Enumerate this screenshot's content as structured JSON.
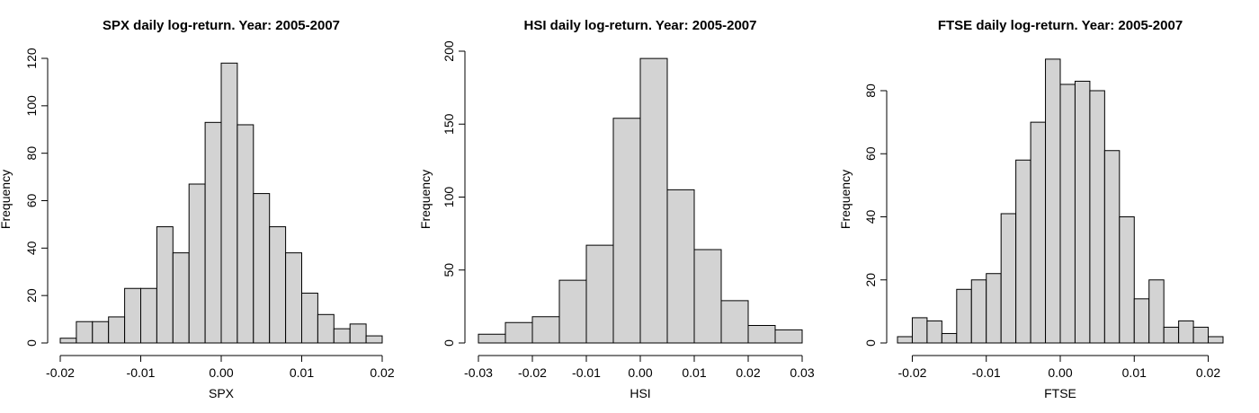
{
  "chart_data": [
    {
      "type": "bar",
      "title": "SPX daily log-return. Year: 2005-2007",
      "xlabel": "SPX",
      "ylabel": "Frequency",
      "bin_edges": [
        -0.02,
        -0.018,
        -0.016,
        -0.014,
        -0.012,
        -0.01,
        -0.008,
        -0.006,
        -0.004,
        -0.002,
        0.0,
        0.002,
        0.004,
        0.006,
        0.008,
        0.01,
        0.012,
        0.014,
        0.016,
        0.018,
        0.02
      ],
      "values": [
        2,
        9,
        9,
        11,
        23,
        23,
        49,
        38,
        67,
        93,
        118,
        92,
        63,
        49,
        38,
        21,
        12,
        6,
        8,
        3
      ],
      "xlim": [
        -0.02,
        0.02
      ],
      "ylim": [
        0,
        120
      ],
      "xticks": [
        -0.02,
        -0.01,
        0.0,
        0.01,
        0.02
      ],
      "xtick_labels": [
        "-0.02",
        "-0.01",
        "0.00",
        "0.01",
        "0.02"
      ],
      "yticks": [
        0,
        20,
        40,
        60,
        80,
        100,
        120
      ],
      "ytick_labels": [
        "0",
        "20",
        "40",
        "60",
        "80",
        "100",
        "120"
      ]
    },
    {
      "type": "bar",
      "title": "HSI daily log-return. Year: 2005-2007",
      "xlabel": "HSI",
      "ylabel": "Frequency",
      "bin_edges": [
        -0.03,
        -0.025,
        -0.02,
        -0.015,
        -0.01,
        -0.005,
        0.0,
        0.005,
        0.01,
        0.015,
        0.02,
        0.025,
        0.03
      ],
      "values": [
        6,
        14,
        18,
        43,
        67,
        154,
        195,
        105,
        64,
        29,
        12,
        9
      ],
      "xlim": [
        -0.03,
        0.03
      ],
      "ylim": [
        0,
        200
      ],
      "xticks": [
        -0.03,
        -0.02,
        -0.01,
        0.0,
        0.01,
        0.02,
        0.03
      ],
      "xtick_labels": [
        "-0.03",
        "-0.02",
        "-0.01",
        "0.00",
        "0.01",
        "0.02",
        "0.03"
      ],
      "yticks": [
        0,
        50,
        100,
        150,
        200
      ],
      "ytick_labels": [
        "0",
        "50",
        "100",
        "150",
        "200"
      ]
    },
    {
      "type": "bar",
      "title": "FTSE daily log-return. Year: 2005-2007",
      "xlabel": "FTSE",
      "ylabel": "Frequency",
      "bin_edges": [
        -0.022,
        -0.02,
        -0.018,
        -0.016,
        -0.014,
        -0.012,
        -0.01,
        -0.008,
        -0.006,
        -0.004,
        -0.002,
        0.0,
        0.002,
        0.004,
        0.006,
        0.008,
        0.01,
        0.012,
        0.014,
        0.016,
        0.018,
        0.02,
        0.022
      ],
      "values": [
        2,
        8,
        7,
        3,
        17,
        20,
        22,
        41,
        58,
        70,
        90,
        82,
        83,
        80,
        61,
        40,
        14,
        20,
        5,
        7,
        5,
        2
      ],
      "xlim": [
        -0.022,
        0.022
      ],
      "ylim": [
        0,
        80
      ],
      "xticks": [
        -0.02,
        -0.01,
        0.0,
        0.01,
        0.02
      ],
      "xtick_labels": [
        "-0.02",
        "-0.01",
        "0.00",
        "0.01",
        "0.02"
      ],
      "yticks": [
        0,
        20,
        40,
        60,
        80
      ],
      "ytick_labels": [
        "0",
        "20",
        "40",
        "60",
        "80"
      ]
    }
  ],
  "colors": {
    "bar_fill": "#d3d3d3",
    "bar_stroke": "#000000"
  }
}
